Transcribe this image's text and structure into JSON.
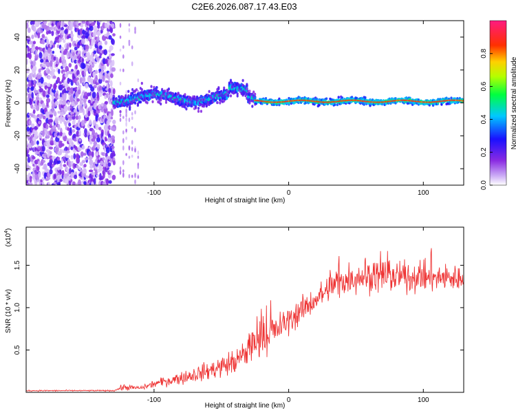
{
  "title": "C2E6.2026.087.17.43.E03",
  "chart_data": [
    {
      "type": "heatmap",
      "name": "spectrogram",
      "xlabel": "Height of straight line (km)",
      "ylabel": "Frequency (Hz)",
      "xlim": [
        -195,
        130
      ],
      "ylim": [
        -50,
        50
      ],
      "xticks": [
        -100,
        0,
        100
      ],
      "yticks": [
        -40,
        -20,
        0,
        20,
        40
      ],
      "colorbar": {
        "label": "Normalized spectral amplitude",
        "range": [
          0.0,
          1.0
        ],
        "ticks": [
          0.0,
          0.2,
          0.4,
          0.6,
          0.8
        ],
        "colors": [
          "#ffffff",
          "#9b30ff",
          "#0000ff",
          "#00ffff",
          "#00ff00",
          "#ffff00",
          "#ff0000",
          "#ff1493"
        ]
      },
      "regions": [
        {
          "name": "noise",
          "x_range": [
            -195,
            -130
          ],
          "freq_range": [
            -50,
            50
          ],
          "amplitude": 0.2
        },
        {
          "name": "sparse-noise",
          "x_range": [
            -125,
            -110
          ],
          "freq_range": [
            -50,
            50
          ],
          "amplitude": 0.05
        },
        {
          "name": "signal-band",
          "x_range": [
            -130,
            -25
          ],
          "center_freq": 3,
          "half_width": 5,
          "amplitude": 0.45
        },
        {
          "name": "stable-line",
          "x_range": [
            -25,
            130
          ],
          "center_freq": 1,
          "half_width": 3,
          "amplitude": 0.85
        }
      ]
    },
    {
      "type": "line",
      "name": "snr",
      "xlabel": "Height of straight line (km)",
      "ylabel": "SNR (10 * v/v)",
      "ylabel_scale_base": "(x10",
      "ylabel_scale_exp": "4",
      "ylabel_scale_close": ")",
      "xlim": [
        -195,
        130
      ],
      "ylim": [
        0,
        1.95
      ],
      "xticks": [
        -100,
        0,
        100
      ],
      "yticks": [
        0.5,
        1.0,
        1.5
      ],
      "ytick_labels": [
        "0.5",
        "1.0",
        "1.5"
      ],
      "color": "#ee3333",
      "trend_points": [
        {
          "x": -195,
          "y": 0.02,
          "noise": 0.01
        },
        {
          "x": -130,
          "y": 0.02,
          "noise": 0.01
        },
        {
          "x": -123,
          "y": 0.06,
          "noise": 0.05
        },
        {
          "x": -110,
          "y": 0.05,
          "noise": 0.03
        },
        {
          "x": -100,
          "y": 0.1,
          "noise": 0.06
        },
        {
          "x": -80,
          "y": 0.17,
          "noise": 0.1
        },
        {
          "x": -60,
          "y": 0.25,
          "noise": 0.14
        },
        {
          "x": -40,
          "y": 0.36,
          "noise": 0.2
        },
        {
          "x": -20,
          "y": 0.6,
          "noise": 0.25
        },
        {
          "x": 0,
          "y": 0.85,
          "noise": 0.22
        },
        {
          "x": 20,
          "y": 1.1,
          "noise": 0.2
        },
        {
          "x": 40,
          "y": 1.33,
          "noise": 0.25
        },
        {
          "x": 60,
          "y": 1.38,
          "noise": 0.25
        },
        {
          "x": 80,
          "y": 1.35,
          "noise": 0.22
        },
        {
          "x": 100,
          "y": 1.35,
          "noise": 0.22
        },
        {
          "x": 130,
          "y": 1.35,
          "noise": 0.22
        }
      ]
    }
  ]
}
